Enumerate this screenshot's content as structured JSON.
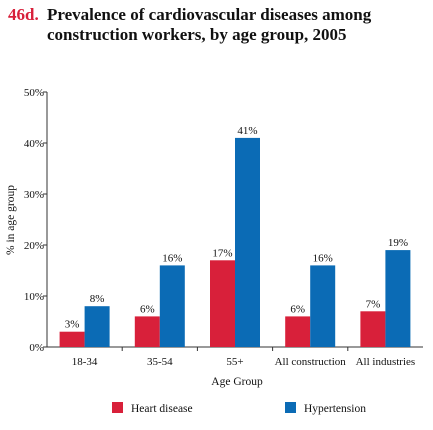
{
  "figure_number": "46d.",
  "title_line1": "Prevalence of cardiovascular diseases among",
  "title_line2": "construction workers, by age group, 2005",
  "chart_data": {
    "type": "bar",
    "categories": [
      "18-34",
      "35-54",
      "55+",
      "All construction",
      "All industries"
    ],
    "series": [
      {
        "name": "Heart disease",
        "color": "#d8203a",
        "values": [
          3,
          6,
          17,
          6,
          7
        ],
        "labels": [
          "3%",
          "6%",
          "17%",
          "6%",
          "7%"
        ]
      },
      {
        "name": "Hypertension",
        "color": "#0b6bb5",
        "values": [
          8,
          16,
          41,
          16,
          19
        ],
        "labels": [
          "8%",
          "16%",
          "41%",
          "16%",
          "19%"
        ]
      }
    ],
    "xlabel": "Age Group",
    "ylabel": "% in age group",
    "ylim": [
      0,
      50
    ],
    "yticks": [
      0,
      10,
      20,
      30,
      40,
      50
    ],
    "ytick_labels": [
      "0%",
      "10%",
      "20%",
      "30%",
      "40%",
      "50%"
    ],
    "grid": false,
    "legend_position": "bottom"
  }
}
